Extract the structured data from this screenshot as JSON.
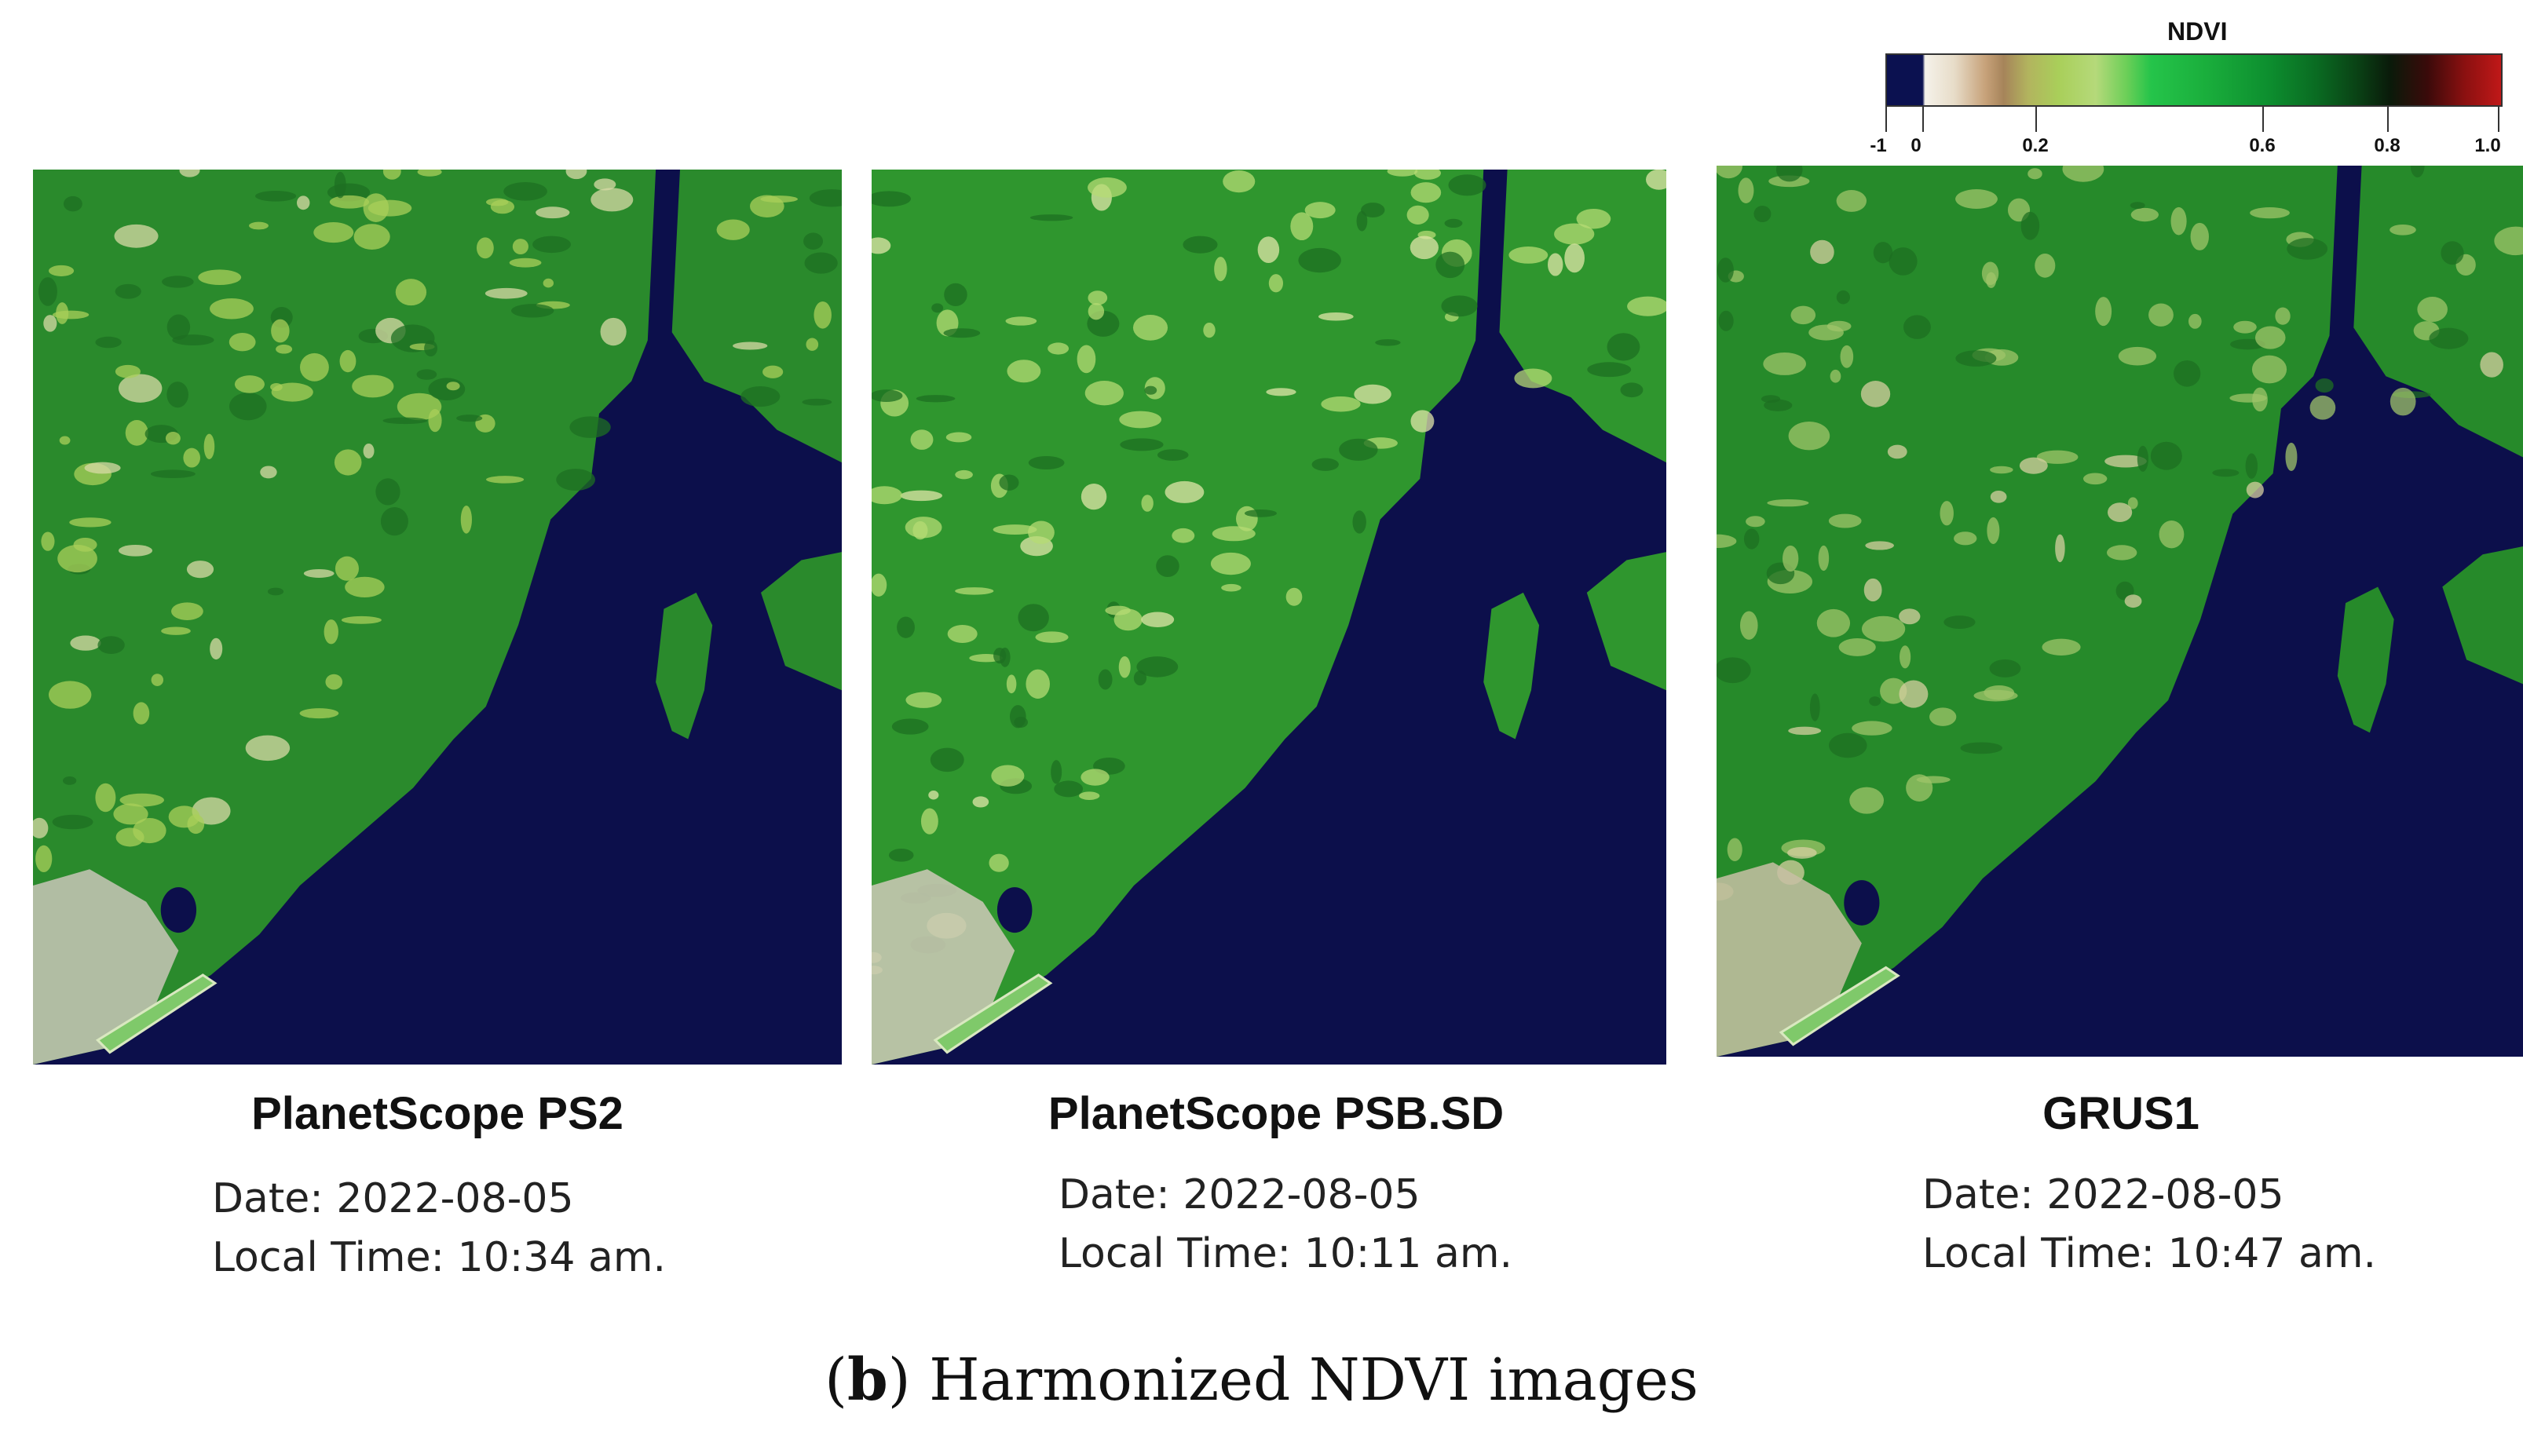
{
  "colorbar": {
    "title": "NDVI",
    "ticks": [
      {
        "label": "-1",
        "value": -1
      },
      {
        "label": "0",
        "value": 0
      },
      {
        "label": "0.2",
        "value": 0.2
      },
      {
        "label": "0.6",
        "value": 0.6
      },
      {
        "label": "0.8",
        "value": 0.8
      },
      {
        "label": "1.0",
        "value": 1.0
      }
    ],
    "colors": {
      "water": "#0b1150",
      "low": "#f5f2ea",
      "mid": "#a9cf5a",
      "high": "#0a6b22",
      "max": "#c01818"
    }
  },
  "panels": [
    {
      "title": "PlanetScope PS2",
      "date": "Date: 2022-08-05",
      "time": "Local Time: 10:34 am."
    },
    {
      "title": "PlanetScope PSB.SD",
      "date": "Date: 2022-08-05",
      "time": "Local Time: 10:11 am."
    },
    {
      "title": "GRUS1",
      "date": "Date: 2022-08-05",
      "time": "Local Time: 10:47 am."
    }
  ],
  "caption": {
    "letter": "b",
    "text": ") Harmonized NDVI images"
  }
}
